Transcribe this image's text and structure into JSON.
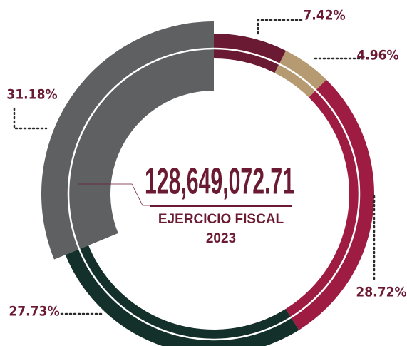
{
  "chart_data": {
    "type": "donut",
    "values": [
      7.42,
      4.96,
      28.72,
      27.73,
      31.18
    ],
    "value_labels": [
      "7.42%",
      "4.96%",
      "28.72%",
      "27.73%",
      "31.18%"
    ],
    "colors": [
      "#6b1a33",
      "#b59a72",
      "#9e1b42",
      "#14302a",
      "#5f6062"
    ],
    "center_total": "128,649,072.71",
    "center_caption": [
      "EJERCICIO FISCAL",
      "2023"
    ]
  }
}
